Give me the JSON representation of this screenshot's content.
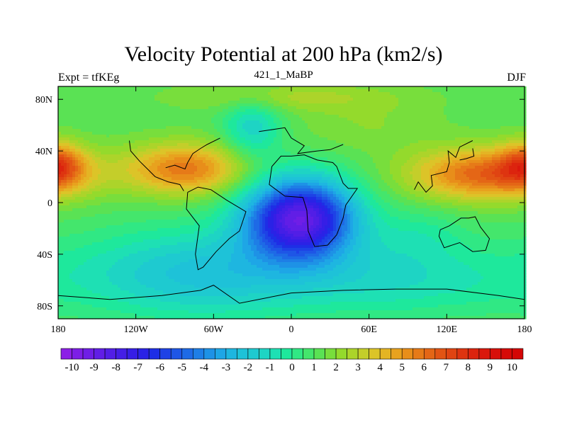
{
  "chart_data": {
    "type": "heatmap",
    "title": "Velocity Potential at 200 hPa (km2/s)",
    "left_string": "Expt = tfKEg",
    "center_string": "421_1_MaBP",
    "right_string": "DJF",
    "x_axis": {
      "range": [
        -180,
        180
      ],
      "ticks": [
        -180,
        -120,
        -60,
        0,
        60,
        120,
        180
      ],
      "tick_labels": [
        "180",
        "120W",
        "60W",
        "0",
        "60E",
        "120E",
        "180"
      ]
    },
    "y_axis": {
      "range": [
        -90,
        90
      ],
      "ticks": [
        80,
        40,
        0,
        -40,
        -80
      ],
      "tick_labels": [
        "80N",
        "40N",
        "0",
        "40S",
        "80S"
      ]
    },
    "colorbar": {
      "min": -10.5,
      "max": 10.5,
      "step": 0.5,
      "labels": [
        "-10",
        "-9",
        "-8",
        "-7",
        "-6",
        "-5",
        "-4",
        "-3",
        "-2",
        "-1",
        "0",
        "1",
        "2",
        "3",
        "4",
        "5",
        "6",
        "7",
        "8",
        "9",
        "10"
      ],
      "colors": [
        "#8c1fe6",
        "#7d1ee6",
        "#6f1ee6",
        "#611ee6",
        "#521ee6",
        "#441ee6",
        "#361ee6",
        "#2a22e6",
        "#1e2ee6",
        "#1e42e6",
        "#1e56e6",
        "#1e6ae6",
        "#1e7ee6",
        "#1e92e6",
        "#1ea6e6",
        "#1eb6e0",
        "#1ec2d8",
        "#1ecad0",
        "#1ed4c4",
        "#1ee0b4",
        "#1ee89c",
        "#30e884",
        "#44e66c",
        "#5ae254",
        "#78de3c",
        "#94da2c",
        "#acd42a",
        "#c4ce2a",
        "#dcc428",
        "#e4b424",
        "#e8a21e",
        "#e88e1a",
        "#e67a18",
        "#e46616",
        "#e25414",
        "#e04412",
        "#de3410",
        "#dc240e",
        "#da180c",
        "#d8100a",
        "#d60a08",
        "#d40606"
      ]
    },
    "features": [
      {
        "name": "upper-level convergence center",
        "lon": 7,
        "lat": -12,
        "value": -8.8
      },
      {
        "name": "divergence center east Pacific",
        "lon": -82,
        "lat": 26,
        "value": 6
      },
      {
        "name": "divergence center west Pacific",
        "lon": 147,
        "lat": 22,
        "value": 6.5
      },
      {
        "name": "divergence dateline",
        "lon": -178,
        "lat": 30,
        "value": 6
      }
    ]
  }
}
